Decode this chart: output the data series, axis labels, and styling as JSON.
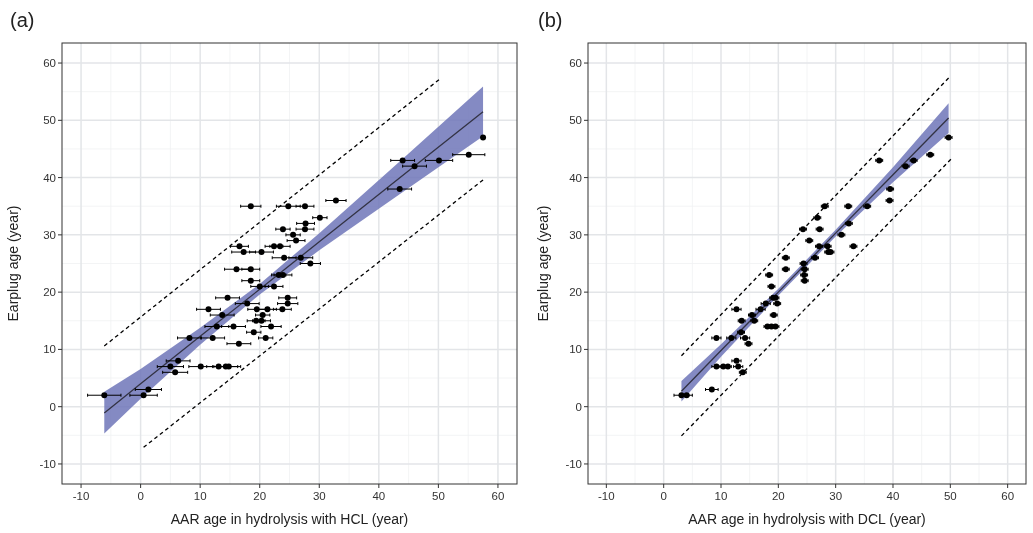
{
  "chart_data": [
    {
      "type": "scatter",
      "title": "(a)",
      "xlabel": "AAR age in hydrolysis with HCL (year)",
      "ylabel": "Earplug age (year)",
      "xlim": [
        -13.2,
        63.2
      ],
      "ylim": [
        -13.5,
        63.5
      ],
      "xticks": [
        -10,
        0,
        10,
        20,
        30,
        40,
        50,
        60
      ],
      "yticks": [
        -10,
        0,
        10,
        20,
        30,
        40,
        50,
        60
      ],
      "grid": true,
      "series": [
        {
          "type": "line",
          "color": "#333344",
          "x": [
            -6.1,
            0,
            10,
            20,
            30,
            45,
            57.5
          ],
          "values": [
            -1.1,
            4.0,
            12.3,
            20.5,
            28.8,
            41.2,
            51.5
          ],
          "lower": [
            -4.7,
            1.4,
            10.8,
            19.6,
            27.3,
            38.2,
            47.2
          ],
          "upper": [
            2.6,
            6.6,
            13.8,
            21.4,
            30.3,
            44.2,
            55.9
          ]
        },
        {
          "type": "line",
          "color": "#000000",
          "line_style": "dashed",
          "x": [
            -6.1,
            50.1
          ],
          "values": [
            10.6,
            57.1
          ]
        },
        {
          "type": "line",
          "color": "#000000",
          "line_style": "dashed",
          "x": [
            0.5,
            57.5
          ],
          "values": [
            -7.1,
            39.6
          ]
        },
        {
          "color": "#000000",
          "marker": "circle",
          "x": [
            -6.1,
            0.5,
            1.3,
            5,
            6.3,
            5.8,
            8.2,
            10.1,
            13.1,
            14.3,
            14.8,
            12.1,
            11.4,
            13.7,
            12.8,
            15.6,
            16.5,
            14.6,
            17.9,
            18.5,
            16.1,
            18.5,
            16.6,
            17.3,
            20.3,
            18.5,
            24.8,
            27.6,
            32.8,
            30.1,
            27.7,
            27.6,
            23.9,
            25.6,
            26.1,
            22.4,
            23.4,
            24.1,
            26.9,
            28.5,
            23.2,
            23.9,
            20,
            22.4,
            24.7,
            24.7,
            19.5,
            21.3,
            23.8,
            20.5,
            19.4,
            20.3,
            21.9,
            19,
            21,
            44,
            50.1,
            46,
            43.5,
            55.1,
            57.5
          ],
          "values": [
            2,
            2,
            3,
            7,
            8,
            6,
            12,
            7,
            7,
            7,
            7,
            12,
            17,
            16,
            14,
            14,
            11,
            19,
            18,
            22,
            24,
            24,
            28,
            27,
            27,
            35,
            35,
            35,
            36,
            33,
            32,
            31,
            31,
            30,
            29,
            28,
            28,
            26,
            26,
            25,
            23,
            23,
            21,
            21,
            19,
            18,
            17,
            17,
            17,
            16,
            15,
            15,
            14,
            13,
            12,
            43,
            43,
            42,
            38,
            44,
            47
          ],
          "xerrors": [
            2.8,
            2.3,
            2.2,
            2.2,
            2,
            2.1,
            2,
            2,
            2,
            2,
            2,
            2,
            2,
            2,
            2,
            2,
            2,
            2,
            2,
            1.5,
            2,
            1.5,
            1.5,
            2,
            2,
            1.7,
            2,
            1.5,
            1.7,
            1.2,
            1.5,
            1.5,
            1.2,
            1.2,
            1.5,
            1.5,
            1.7,
            2,
            2,
            1.7,
            1.2,
            1.5,
            1.5,
            1.5,
            1.5,
            1.7,
            1.5,
            1.5,
            1.5,
            1.2,
            1.5,
            1.5,
            1.7,
            1.2,
            1.2,
            2,
            2.3,
            2,
            2,
            2.7,
            null
          ]
        }
      ]
    },
    {
      "type": "scatter",
      "title": "(b)",
      "xlabel": "AAR age in hydrolysis with DCL (year)",
      "ylabel": "Earplug age (year)",
      "xlim": [
        -13.2,
        63.2
      ],
      "ylim": [
        -13.5,
        63.5
      ],
      "xticks": [
        -10,
        0,
        10,
        20,
        30,
        40,
        50,
        60
      ],
      "yticks": [
        -10,
        0,
        10,
        20,
        30,
        40,
        50,
        60
      ],
      "grid": true,
      "series": [
        {
          "type": "line",
          "color": "#333344",
          "x": [
            3.1,
            10,
            20,
            30,
            40,
            49.7
          ],
          "values": [
            2.7,
            9.8,
            20.0,
            30.3,
            40.5,
            50.4
          ],
          "lower": [
            0.9,
            8.7,
            19.4,
            29.7,
            39.2,
            47.8
          ],
          "upper": [
            4.5,
            10.9,
            20.6,
            30.9,
            41.8,
            53.0
          ]
        },
        {
          "type": "line",
          "color": "#000000",
          "line_style": "dashed",
          "x": [
            3.1,
            49.7
          ],
          "values": [
            8.9,
            57.4
          ]
        },
        {
          "type": "line",
          "color": "#000000",
          "line_style": "dashed",
          "x": [
            3.1,
            50.1
          ],
          "values": [
            -5.1,
            43.2
          ]
        },
        {
          "color": "#000000",
          "marker": "circle",
          "x": [
            3.1,
            4.0,
            8.4,
            9.2,
            10.4,
            11.2,
            12.7,
            13.0,
            13.8,
            9.2,
            11.8,
            14.2,
            14.8,
            13.5,
            12.7,
            13.6,
            15.4,
            15.8,
            16.9,
            17.8,
            18.4,
            18.8,
            18.1,
            18.8,
            19.5,
            19.2,
            19.1,
            19.5,
            19.8,
            21.3,
            21.3,
            24.3,
            24.4,
            24.6,
            24.5,
            24.6,
            25.4,
            26.4,
            26.8,
            27.2,
            27.1,
            28.1,
            28.6,
            28.7,
            29.1,
            31.0,
            32.2,
            32.3,
            33.1,
            35.5,
            37.6,
            39.5,
            39.4,
            42.2,
            43.6,
            46.5,
            49.7
          ],
          "values": [
            2,
            2,
            3,
            7,
            7,
            7,
            8,
            7,
            6,
            12,
            12,
            12,
            11,
            13,
            17,
            15,
            16,
            15,
            17,
            18,
            23,
            21,
            14,
            14,
            14,
            16,
            19,
            19,
            18,
            26,
            24,
            31,
            25,
            24,
            23,
            22,
            29,
            26,
            33,
            31,
            28,
            35,
            28,
            27,
            27,
            30,
            35,
            32,
            28,
            35,
            43,
            38,
            36,
            42,
            43,
            44,
            47
          ],
          "xerrors": [
            1.3,
            1,
            1.1,
            0.8,
            0.6,
            0.6,
            0.8,
            0.8,
            0.6,
            0.8,
            0.8,
            0.8,
            0.6,
            0.6,
            0.8,
            0.6,
            0.6,
            0.6,
            0.8,
            0.8,
            0.6,
            0.6,
            0.6,
            0.6,
            0.6,
            0.6,
            0.6,
            0.6,
            0.6,
            0.6,
            0.6,
            0.6,
            0.6,
            0.6,
            0.6,
            0.6,
            0.6,
            0.6,
            0.6,
            0.6,
            0.6,
            0.6,
            0.6,
            0.6,
            0.6,
            0.6,
            0.6,
            0.6,
            0.6,
            0.6,
            0.6,
            0.6,
            0.6,
            0.6,
            0.6,
            0.6,
            0.6
          ]
        }
      ]
    }
  ]
}
